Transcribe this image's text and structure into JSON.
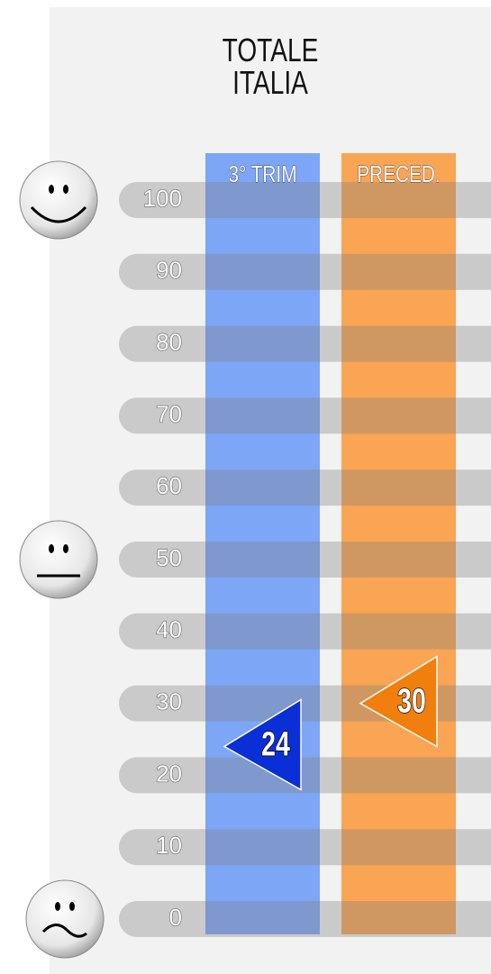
{
  "chart_data": {
    "type": "gauge",
    "title": "TOTALE ITALIA",
    "series": [
      {
        "name": "3° TRIM",
        "color": "#0a2fd6",
        "band_color": "#7ea6f7",
        "values": [
          24
        ]
      },
      {
        "name": "PRECED.",
        "color": "#f07f0e",
        "band_color": "#f9a553",
        "values": [
          30
        ]
      }
    ],
    "ylim": [
      0,
      100
    ],
    "yticks": [
      0,
      10,
      20,
      30,
      40,
      50,
      60,
      70,
      80,
      90,
      100
    ],
    "grid": true
  }
}
